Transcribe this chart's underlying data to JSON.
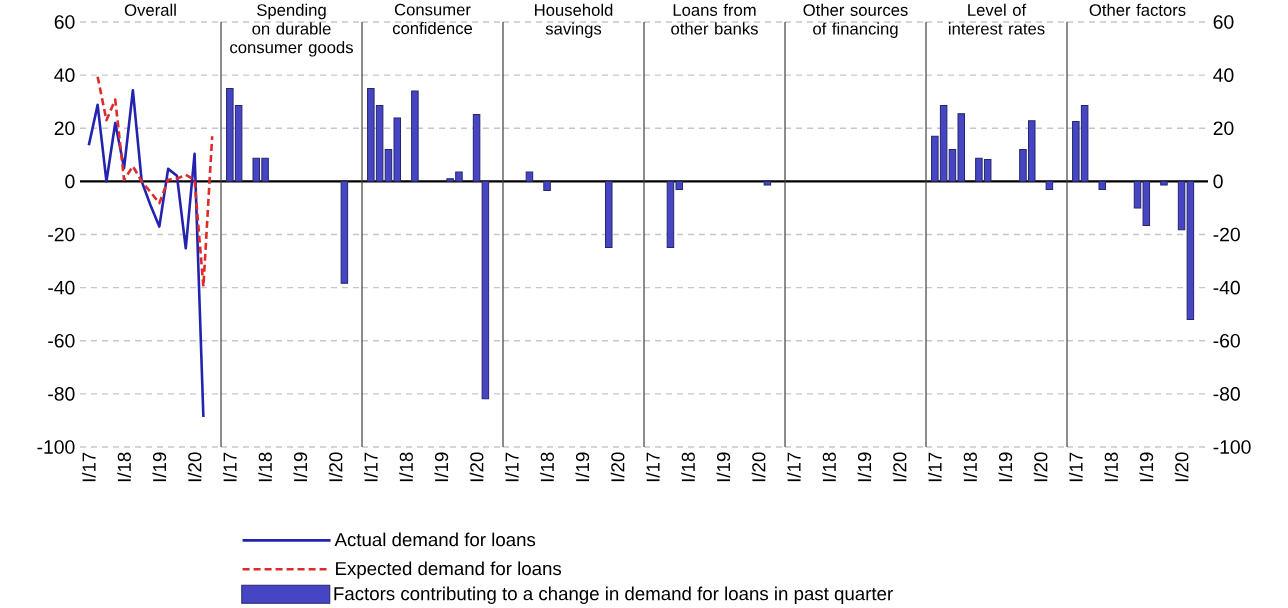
{
  "chart_data": [
    {
      "type": "line",
      "title": "Overall",
      "categories": [
        "I/17",
        null,
        null,
        null,
        "I/18",
        null,
        null,
        null,
        "I/19",
        null,
        null,
        null,
        "I/20",
        null,
        null
      ],
      "ylim": [
        -100,
        60
      ],
      "yticks": [
        -100,
        -80,
        -60,
        -40,
        -20,
        0,
        20,
        40,
        60
      ],
      "grid": "y",
      "legend": "bottom",
      "series": [
        {
          "name": "Actual demand for loans",
          "color": "#2323b0",
          "line_style": "solid",
          "values": [
            13.6,
            28.8,
            0,
            22,
            5,
            34.3,
            0,
            -9,
            -17,
            4.7,
            2.1,
            -25.2,
            10.4,
            -88.7,
            null
          ]
        },
        {
          "name": "Expected demand for loans",
          "color": "#e02a2a",
          "line_style": "dashed",
          "values": [
            null,
            39.4,
            23,
            30.8,
            0.6,
            5.7,
            0,
            -4,
            -8.2,
            0.6,
            1,
            2.5,
            0.6,
            -39.6,
            17
          ]
        }
      ]
    },
    {
      "type": "bar",
      "title": "Spending on durable consumer goods",
      "categories": [
        "I/17",
        null,
        null,
        null,
        "I/18",
        null,
        null,
        null,
        "I/19",
        null,
        null,
        null,
        "I/20",
        null,
        null
      ],
      "ylim": [
        -100,
        60
      ],
      "yticks": [
        -100,
        -80,
        -60,
        -40,
        -20,
        0,
        20,
        40,
        60
      ],
      "grid": "y",
      "tick_labels": "x",
      "legend": "bottom",
      "series": [
        {
          "name": "Factors contributing to a change in demand for loans in past quarter",
          "color": "#4646c4",
          "values": [
            35,
            28.6,
            null,
            8.7,
            8.7,
            null,
            null,
            null,
            null,
            null,
            null,
            null,
            null,
            -38.4,
            null
          ]
        }
      ]
    },
    {
      "type": "bar",
      "title": "Consumer confidence",
      "categories": [
        "I/17",
        null,
        null,
        null,
        "I/18",
        null,
        null,
        null,
        "I/19",
        null,
        null,
        null,
        "I/20",
        null,
        null
      ],
      "ylim": [
        -100,
        60
      ],
      "yticks": [
        -100,
        -80,
        -60,
        -40,
        -20,
        0,
        20,
        40,
        60
      ],
      "grid": "y",
      "tick_labels": "x",
      "series": [
        {
          "color": "#4646c4",
          "values": [
            35,
            28.6,
            12,
            23.9,
            null,
            34,
            null,
            null,
            null,
            1,
            3.5,
            null,
            25.2,
            -81.8,
            null
          ]
        }
      ]
    },
    {
      "type": "bar",
      "title": "Household savings",
      "categories": [
        "I/17",
        null,
        null,
        null,
        "I/18",
        null,
        null,
        null,
        "I/19",
        null,
        null,
        null,
        "I/20",
        null,
        null
      ],
      "ylim": [
        -100,
        60
      ],
      "yticks": [
        -100,
        -80,
        -60,
        -40,
        -20,
        0,
        20,
        40,
        60
      ],
      "grid": "y",
      "tick_labels": "x",
      "series": [
        {
          "color": "#4646c4",
          "values": [
            null,
            null,
            3.5,
            null,
            -3.4,
            null,
            null,
            null,
            null,
            null,
            null,
            -24.9,
            null,
            null,
            null
          ]
        }
      ]
    },
    {
      "type": "bar",
      "title": "Loans from other banks",
      "categories": [
        "I/17",
        null,
        null,
        null,
        "I/18",
        null,
        null,
        null,
        "I/19",
        null,
        null,
        null,
        "I/20",
        null,
        null
      ],
      "ylim": [
        -100,
        60
      ],
      "yticks": [
        -100,
        -80,
        -60,
        -40,
        -20,
        0,
        20,
        40,
        60
      ],
      "grid": "y",
      "tick_labels": "x",
      "series": [
        {
          "color": "#4646c4",
          "values": [
            null,
            null,
            -24.9,
            -3.1,
            null,
            null,
            null,
            null,
            null,
            null,
            null,
            null,
            null,
            -1.4,
            null
          ]
        }
      ]
    },
    {
      "type": "bar",
      "title": "Other sources of financing",
      "categories": [
        "I/17",
        null,
        null,
        null,
        "I/18",
        null,
        null,
        null,
        "I/19",
        null,
        null,
        null,
        "I/20",
        null,
        null
      ],
      "ylim": [
        -100,
        60
      ],
      "yticks": [
        -100,
        -80,
        -60,
        -40,
        -20,
        0,
        20,
        40,
        60
      ],
      "grid": "y",
      "tick_labels": "x",
      "series": [
        {
          "color": "#4646c4",
          "values": [
            null,
            null,
            null,
            null,
            null,
            null,
            null,
            null,
            null,
            null,
            null,
            null,
            null,
            null,
            null
          ]
        }
      ]
    },
    {
      "type": "bar",
      "title": "Level of interest rates",
      "categories": [
        "I/17",
        null,
        null,
        null,
        "I/18",
        null,
        null,
        null,
        "I/19",
        null,
        null,
        null,
        "I/20",
        null,
        null
      ],
      "ylim": [
        -100,
        60
      ],
      "yticks": [
        -100,
        -80,
        -60,
        -40,
        -20,
        0,
        20,
        40,
        60
      ],
      "grid": "y",
      "tick_labels": "x",
      "series": [
        {
          "color": "#4646c4",
          "values": [
            17,
            28.6,
            12,
            25.5,
            null,
            8.7,
            8.2,
            null,
            null,
            null,
            12,
            22.8,
            null,
            -3.1,
            null
          ]
        }
      ]
    },
    {
      "type": "bar",
      "title": "Other factors",
      "categories": [
        "I/17",
        null,
        null,
        null,
        "I/18",
        null,
        null,
        null,
        "I/19",
        null,
        null,
        null,
        "I/20",
        null,
        null
      ],
      "ylim": [
        -100,
        60
      ],
      "yticks": [
        -100,
        -80,
        -60,
        -40,
        -20,
        0,
        20,
        40,
        60
      ],
      "grid": "y",
      "series": [
        {
          "color": "#4646c4",
          "values": [
            22.5,
            28.6,
            null,
            -3.1,
            null,
            null,
            null,
            -10,
            -16.6,
            null,
            -1.4,
            null,
            -18.2,
            -52,
            null
          ]
        }
      ]
    }
  ]
}
